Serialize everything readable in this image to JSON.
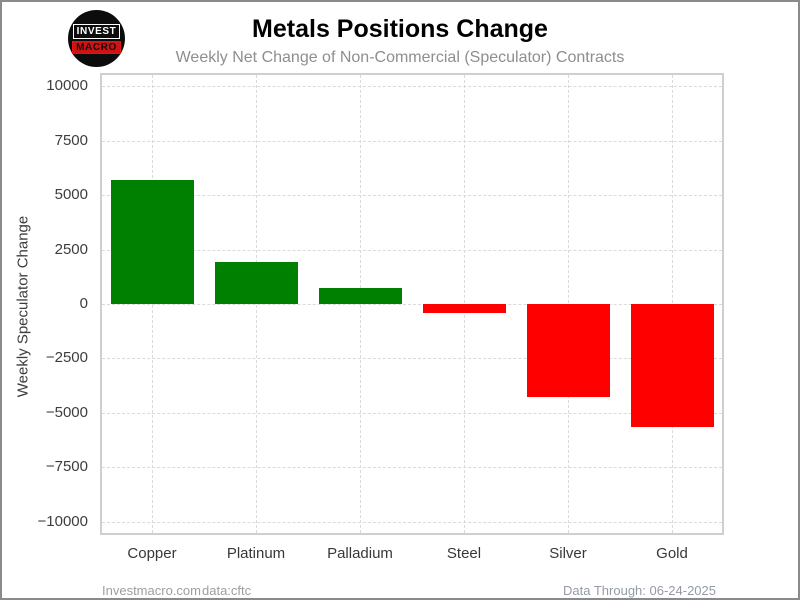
{
  "header": {
    "title": "Metals Positions Change",
    "subtitle": "Weekly Net Change of Non-Commercial (Speculator) Contracts",
    "logo": {
      "top": "INVEST",
      "bottom": "MACRO"
    }
  },
  "footer": {
    "site": "Investmacro.com",
    "source": "data:cftc",
    "data_through": "Data Through: 06-24-2025"
  },
  "chart_data": {
    "type": "bar",
    "title": "Metals Positions Change",
    "subtitle": "Weekly Net Change of Non-Commercial (Speculator) Contracts",
    "categories": [
      "Copper",
      "Platinum",
      "Palladium",
      "Steel",
      "Silver",
      "Gold"
    ],
    "values": [
      5700,
      1950,
      740,
      -430,
      -4250,
      -5650
    ],
    "xlabel": "",
    "ylabel": "Weekly Speculator Change",
    "ylim": [
      -10600,
      10600
    ],
    "yticks": [
      -10000,
      -7500,
      -5000,
      -2500,
      0,
      2500,
      5000,
      7500,
      10000
    ],
    "grid": "dashed-both-axes",
    "legend": "none",
    "positive_color": "#008000",
    "negative_color": "#ff0000"
  }
}
